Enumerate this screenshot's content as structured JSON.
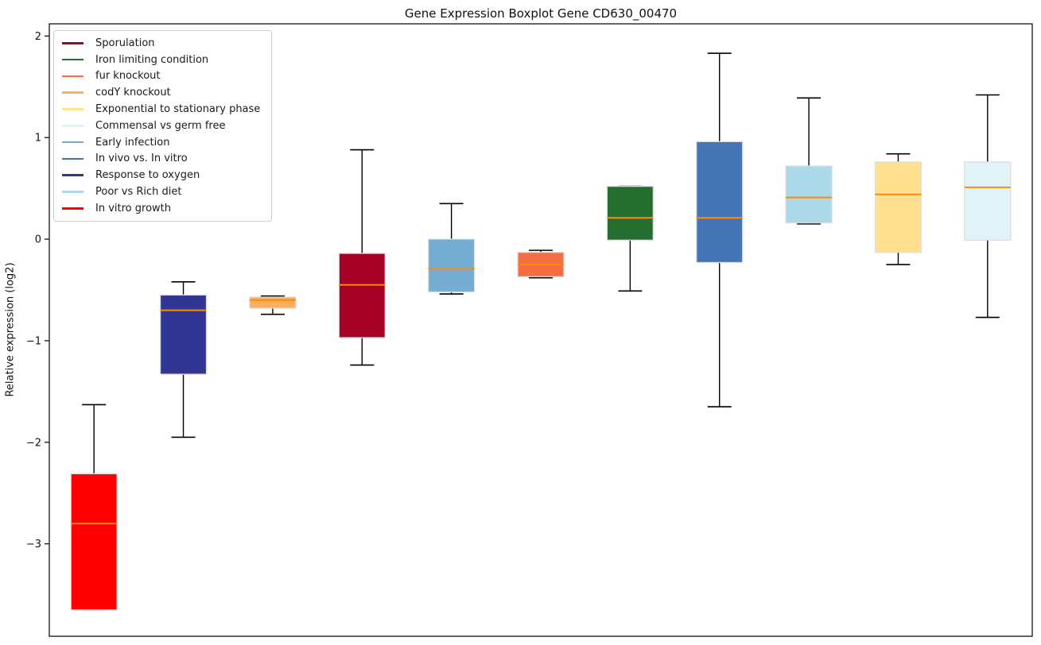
{
  "chart_data": {
    "type": "boxplot",
    "title": "Gene Expression Boxplot Gene CD630_00470",
    "ylabel": "Relative expression (log2)",
    "xlabel": "",
    "ylim": [
      -3.91,
      2.12
    ],
    "yticks": [
      2,
      1,
      0,
      -1,
      -2,
      -3
    ],
    "grid": false,
    "legend_position": "upper-left",
    "median_color": "#ff8c00",
    "whisker_color": "#000000",
    "box_edge_color": "#dddddd",
    "legend": [
      {
        "label": "Sporulation",
        "color": "#a50026"
      },
      {
        "label": "Iron limiting condition",
        "color": "#256e30"
      },
      {
        "label": "fur knockout",
        "color": "#f46d43"
      },
      {
        "label": "codY knockout",
        "color": "#fdae61"
      },
      {
        "label": "Exponential to stationary phase",
        "color": "#fee090"
      },
      {
        "label": "Commensal vs germ free",
        "color": "#e0f3f8"
      },
      {
        "label": "Early infection",
        "color": "#74add1"
      },
      {
        "label": "In vivo vs. In vitro",
        "color": "#4575b4"
      },
      {
        "label": "Response to oxygen",
        "color": "#313695"
      },
      {
        "label": "Poor vs Rich diet",
        "color": "#abd9e9"
      },
      {
        "label": "In vitro growth",
        "color": "#ff0000"
      }
    ],
    "boxes": [
      {
        "condition": "In vitro growth",
        "color": "#ff0000",
        "whisker_low": -3.65,
        "q1": -3.65,
        "median": -2.8,
        "q3": -2.31,
        "whisker_high": -1.63
      },
      {
        "condition": "Response to oxygen",
        "color": "#313695",
        "whisker_low": -1.95,
        "q1": -1.33,
        "median": -0.7,
        "q3": -0.55,
        "whisker_high": -0.42
      },
      {
        "condition": "codY knockout",
        "color": "#fdae61",
        "whisker_low": -0.74,
        "q1": -0.68,
        "median": -0.6,
        "q3": -0.57,
        "whisker_high": -0.56
      },
      {
        "condition": "Sporulation",
        "color": "#a50026",
        "whisker_low": -1.24,
        "q1": -0.97,
        "median": -0.45,
        "q3": -0.14,
        "whisker_high": 0.88
      },
      {
        "condition": "Early infection",
        "color": "#74add1",
        "whisker_low": -0.54,
        "q1": -0.52,
        "median": -0.29,
        "q3": 0.0,
        "whisker_high": 0.35
      },
      {
        "condition": "fur knockout",
        "color": "#f46d43",
        "whisker_low": -0.38,
        "q1": -0.37,
        "median": -0.25,
        "q3": -0.13,
        "whisker_high": -0.11
      },
      {
        "condition": "Iron limiting condition",
        "color": "#256e30",
        "whisker_low": -0.51,
        "q1": -0.01,
        "median": 0.21,
        "q3": 0.52,
        "whisker_high": 0.52
      },
      {
        "condition": "In vivo vs. In vitro",
        "color": "#4575b4",
        "whisker_low": -1.65,
        "q1": -0.23,
        "median": 0.21,
        "q3": 0.96,
        "whisker_high": 1.83
      },
      {
        "condition": "Poor vs Rich diet",
        "color": "#abd9e9",
        "whisker_low": 0.15,
        "q1": 0.16,
        "median": 0.41,
        "q3": 0.72,
        "whisker_high": 1.39
      },
      {
        "condition": "Exponential to stationary phase",
        "color": "#fee090",
        "whisker_low": -0.25,
        "q1": -0.13,
        "median": 0.44,
        "q3": 0.76,
        "whisker_high": 0.84
      },
      {
        "condition": "Commensal vs germ free",
        "color": "#e0f3f8",
        "whisker_low": -0.77,
        "q1": -0.01,
        "median": 0.51,
        "q3": 0.76,
        "whisker_high": 1.42
      }
    ]
  }
}
